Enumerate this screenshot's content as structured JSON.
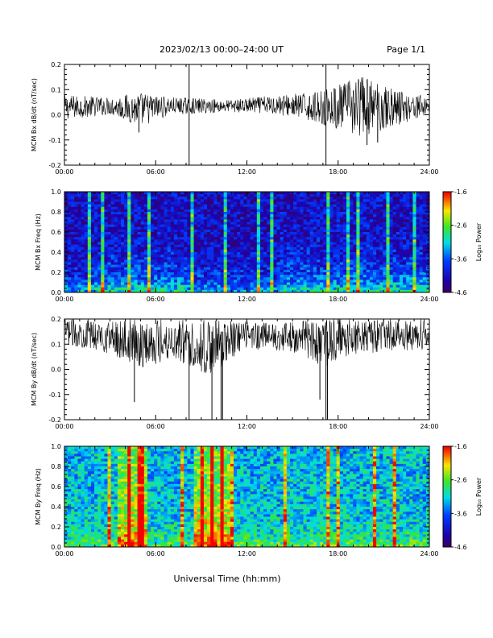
{
  "header": {
    "title": "2023/02/13  00:00–24:00 UT",
    "page": "Page 1/1"
  },
  "xlabel": "Universal Time (hh:mm)",
  "chart_data": [
    {
      "type": "line",
      "ylabel": "MCM Bx dB/dt (nT/sec)",
      "xlim": [
        0,
        24
      ],
      "ylim": [
        -0.2,
        0.2
      ],
      "xticks": [
        "00:00",
        "06:00",
        "12:00",
        "18:00",
        "24:00"
      ],
      "yticks": [
        "0.2",
        "0.1",
        "0.0",
        "-0.1",
        "-0.2"
      ],
      "baseline": 0.03,
      "envelope": [
        {
          "x": 0,
          "lo": -0.02,
          "hi": 0.08
        },
        {
          "x": 3,
          "lo": 0.0,
          "hi": 0.07
        },
        {
          "x": 5,
          "lo": -0.05,
          "hi": 0.09
        },
        {
          "x": 7,
          "lo": 0.0,
          "hi": 0.07
        },
        {
          "x": 11,
          "lo": 0.01,
          "hi": 0.06
        },
        {
          "x": 14,
          "lo": 0.0,
          "hi": 0.08
        },
        {
          "x": 16.5,
          "lo": -0.03,
          "hi": 0.09
        },
        {
          "x": 18,
          "lo": -0.06,
          "hi": 0.12
        },
        {
          "x": 19.5,
          "lo": -0.09,
          "hi": 0.16
        },
        {
          "x": 21.5,
          "lo": -0.05,
          "hi": 0.11
        },
        {
          "x": 24,
          "lo": 0.0,
          "hi": 0.07
        }
      ],
      "spikes": [
        {
          "x": 8.2,
          "y": 0.2
        },
        {
          "x": 8.2,
          "y": -0.2
        },
        {
          "x": 17.2,
          "y": 0.22
        },
        {
          "x": 17.2,
          "y": -0.22
        },
        {
          "x": 4.9,
          "y": -0.07
        },
        {
          "x": 19.9,
          "y": -0.12
        },
        {
          "x": 20.6,
          "y": -0.11
        }
      ]
    },
    {
      "type": "heatmap",
      "ylabel": "MCM Bx Freq (Hz)",
      "colorbar_label": "Log₁₀ Power",
      "xlim": [
        0,
        24
      ],
      "ylim": [
        0,
        1.0
      ],
      "xticks": [
        "00:00",
        "06:00",
        "12:00",
        "18:00",
        "24:00"
      ],
      "yticks": [
        "1.0",
        "0.8",
        "0.6",
        "0.4",
        "0.2",
        "0.0"
      ],
      "colorbar_ticks": [
        "-1.6",
        "-2.6",
        "-3.6",
        "-4.6"
      ],
      "zlim": [
        -4.6,
        -1.6
      ],
      "background_power": -4.1,
      "low_freq_power": -3.2,
      "active_hours": [
        [
          2,
          8
        ],
        [
          14,
          24
        ]
      ],
      "bright_columns": [
        1.5,
        2.4,
        4.2,
        5.5,
        8.2,
        10.4,
        12.7,
        13.6,
        17.2,
        18.5,
        19.3,
        21.1,
        22.8
      ]
    },
    {
      "type": "line",
      "ylabel": "MCM By dB/dt (nT/sec)",
      "xlim": [
        0,
        24
      ],
      "ylim": [
        -0.2,
        0.2
      ],
      "xticks": [
        "00:00",
        "06:00",
        "12:00",
        "18:00",
        "24:00"
      ],
      "yticks": [
        "0.2",
        "0.1",
        "0.0",
        "-0.1",
        "-0.2"
      ],
      "baseline": 0.15,
      "envelope": [
        {
          "x": 0,
          "lo": 0.1,
          "hi": 0.2
        },
        {
          "x": 3,
          "lo": 0.06,
          "hi": 0.2
        },
        {
          "x": 5,
          "lo": 0.0,
          "hi": 0.2
        },
        {
          "x": 7,
          "lo": 0.04,
          "hi": 0.2
        },
        {
          "x": 9.5,
          "lo": -0.03,
          "hi": 0.2
        },
        {
          "x": 12,
          "lo": 0.08,
          "hi": 0.19
        },
        {
          "x": 15,
          "lo": 0.07,
          "hi": 0.19
        },
        {
          "x": 17,
          "lo": 0.0,
          "hi": 0.2
        },
        {
          "x": 19,
          "lo": 0.06,
          "hi": 0.2
        },
        {
          "x": 24,
          "lo": 0.08,
          "hi": 0.2
        }
      ],
      "spikes": [
        {
          "x": 4.6,
          "y": -0.13
        },
        {
          "x": 8.2,
          "y": -0.22
        },
        {
          "x": 9.7,
          "y": -0.22
        },
        {
          "x": 10.3,
          "y": -0.22
        },
        {
          "x": 10.4,
          "y": -0.22
        },
        {
          "x": 16.8,
          "y": -0.12
        },
        {
          "x": 17.2,
          "y": -0.22
        },
        {
          "x": 17.3,
          "y": -0.22
        }
      ]
    },
    {
      "type": "heatmap",
      "ylabel": "MCM By Freq (Hz)",
      "colorbar_label": "Log₁₀ Power",
      "xlim": [
        0,
        24
      ],
      "ylim": [
        0,
        1.0
      ],
      "xticks": [
        "00:00",
        "06:00",
        "12:00",
        "18:00",
        "24:00"
      ],
      "yticks": [
        "1.0",
        "0.8",
        "0.6",
        "0.4",
        "0.2",
        "0.0"
      ],
      "colorbar_ticks": [
        "-1.6",
        "-2.6",
        "-3.6",
        "-4.6"
      ],
      "zlim": [
        -4.6,
        -1.6
      ],
      "background_power": -3.2,
      "low_freq_power": -2.6,
      "hot_hours": [
        [
          3.5,
          5.5
        ],
        [
          8.5,
          11
        ]
      ],
      "bright_columns": [
        2.8,
        4.1,
        4.7,
        5.1,
        7.6,
        8.9,
        9.5,
        10.3,
        10.8,
        14.5,
        17.2,
        17.9,
        20.2,
        21.5
      ]
    }
  ]
}
